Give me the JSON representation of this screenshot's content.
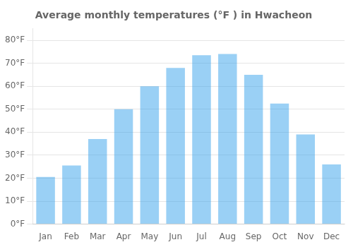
{
  "chart_data": {
    "type": "bar",
    "title": "Average monthly temperatures (°F ) in Hwacheon",
    "categories": [
      "Jan",
      "Feb",
      "Mar",
      "Apr",
      "May",
      "Jun",
      "Jul",
      "Aug",
      "Sep",
      "Oct",
      "Nov",
      "Dec"
    ],
    "values": [
      20.5,
      25.5,
      37.0,
      50.0,
      60.0,
      68.0,
      73.5,
      74.0,
      65.0,
      52.5,
      39.0,
      26.0
    ],
    "ylim": [
      0,
      85
    ],
    "yticks": [
      {
        "value": 0,
        "label": "0°F"
      },
      {
        "value": 10,
        "label": "10°F"
      },
      {
        "value": 20,
        "label": "20°F"
      },
      {
        "value": 30,
        "label": "30°F"
      },
      {
        "value": 40,
        "label": "40°F"
      },
      {
        "value": 50,
        "label": "50°F"
      },
      {
        "value": 60,
        "label": "60°F"
      },
      {
        "value": 70,
        "label": "70°F"
      },
      {
        "value": 80,
        "label": "80°F"
      }
    ],
    "grid": true
  }
}
